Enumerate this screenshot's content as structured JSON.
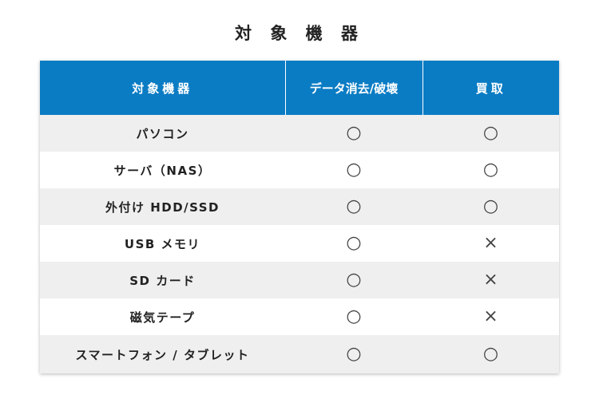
{
  "title": "対 象 機 器",
  "table": {
    "headers": [
      "対象機器",
      "データ消去/破壊",
      "買取"
    ],
    "rows": [
      {
        "device": "パソコン",
        "erase": "○",
        "purchase": "○"
      },
      {
        "device": "サーバ（NAS）",
        "erase": "○",
        "purchase": "○"
      },
      {
        "device": "外付け HDD/SSD",
        "erase": "○",
        "purchase": "○"
      },
      {
        "device": "USB メモリ",
        "erase": "○",
        "purchase": "×"
      },
      {
        "device": "SD カード",
        "erase": "○",
        "purchase": "×"
      },
      {
        "device": "磁気テープ",
        "erase": "○",
        "purchase": "×"
      },
      {
        "device": "スマートフォン / タブレット",
        "erase": "○",
        "purchase": "○"
      }
    ]
  },
  "colors": {
    "header_bg": "#0a7cc4",
    "header_text": "#ffffff",
    "row_alt_bg": "#efefef",
    "row_bg": "#ffffff"
  }
}
